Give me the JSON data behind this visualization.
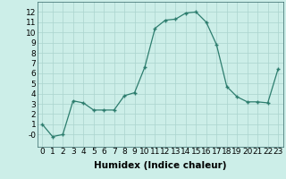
{
  "x": [
    0,
    1,
    2,
    3,
    4,
    5,
    6,
    7,
    8,
    9,
    10,
    11,
    12,
    13,
    14,
    15,
    16,
    17,
    18,
    19,
    20,
    21,
    22,
    23
  ],
  "y": [
    1,
    -0.2,
    0.0,
    3.3,
    3.1,
    2.4,
    2.4,
    2.4,
    3.8,
    4.1,
    6.6,
    10.4,
    11.2,
    11.3,
    11.9,
    12.0,
    11.0,
    8.8,
    4.7,
    3.7,
    3.2,
    3.2,
    3.1,
    6.4
  ],
  "xlabel": "Humidex (Indice chaleur)",
  "xlim": [
    -0.5,
    23.5
  ],
  "ylim": [
    -1.2,
    13
  ],
  "yticks": [
    0,
    1,
    2,
    3,
    4,
    5,
    6,
    7,
    8,
    9,
    10,
    11,
    12
  ],
  "ytick_labels": [
    "-0",
    "1",
    "2",
    "3",
    "4",
    "5",
    "6",
    "7",
    "8",
    "9",
    "10",
    "11",
    "12"
  ],
  "xticks": [
    0,
    1,
    2,
    3,
    4,
    5,
    6,
    7,
    8,
    9,
    10,
    11,
    12,
    13,
    14,
    15,
    16,
    17,
    18,
    19,
    20,
    21,
    22,
    23
  ],
  "line_color": "#2d7d6e",
  "marker": "+",
  "bg_color": "#cceee8",
  "grid_color": "#aad4ce",
  "xlabel_fontsize": 7.5,
  "tick_fontsize": 6.5
}
